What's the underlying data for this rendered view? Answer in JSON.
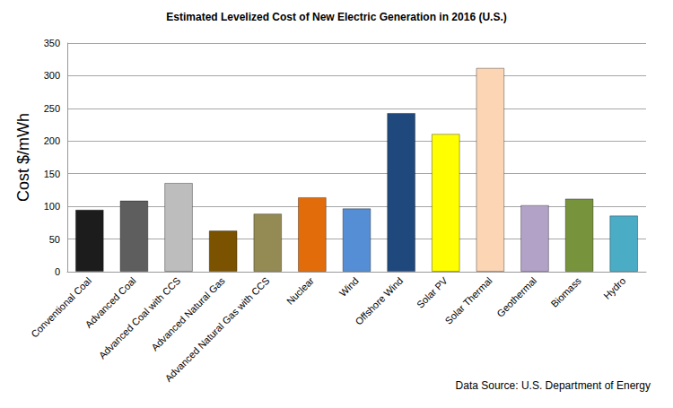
{
  "chart_data": {
    "type": "bar",
    "title": "Estimated Levelized Cost of New Electric Generation in 2016 (U.S.)",
    "y_label": "Cost $/mWh",
    "annotation": "Data Source: U.S. Department of Energy",
    "categories": [
      "Conventional Coal",
      "Advanced Coal",
      "Advanced Coal with CCS",
      "Advanced Natural Gas",
      "Advanced Natural Gas with CCS",
      "Nuclear",
      "Wind",
      "Offshore Wind",
      "Solar PV",
      "Solar Thermal",
      "Geothermal",
      "Biomass",
      "Hydro"
    ],
    "values": [
      95,
      109,
      136,
      63,
      89,
      114,
      97,
      243,
      211,
      312,
      102,
      112,
      86
    ],
    "colors": [
      "#1c1c1c",
      "#5e5e5e",
      "#bdbdbd",
      "#7a5200",
      "#948a54",
      "#e36c0a",
      "#558ed5",
      "#1f497d",
      "#ffff00",
      "#fcd5b5",
      "#b3a2c7",
      "#77933c",
      "#4bacc6"
    ],
    "ylim": [
      0,
      350
    ],
    "yticks": [
      0,
      50,
      100,
      150,
      200,
      250,
      300,
      350
    ],
    "grid": true
  }
}
